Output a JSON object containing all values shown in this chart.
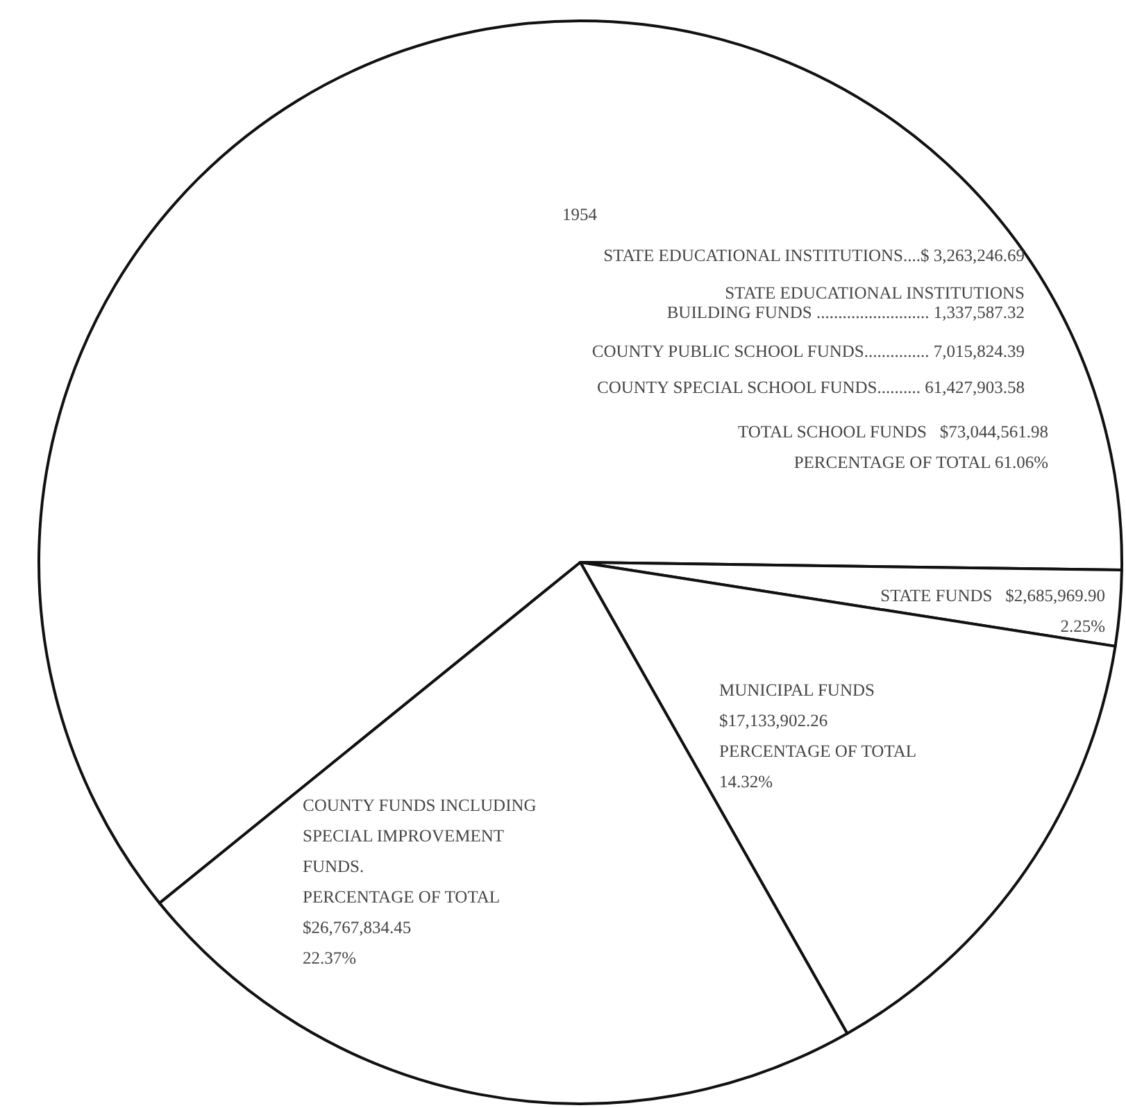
{
  "chart_data": {
    "type": "pie",
    "title": "1954",
    "categories": [
      "TOTAL SCHOOL FUNDS",
      "STATE FUNDS",
      "MUNICIPAL FUNDS",
      "COUNTY FUNDS INCLUDING\nSPECIAL IMPROVEMENT\nFUNDS."
    ],
    "values": [
      61.06,
      2.25,
      14.32,
      22.37
    ],
    "colors": [
      "#ffffff",
      "#ffffff",
      "#ffffff",
      "#ffffff"
    ],
    "value_labels": [
      "$73,044,561.98\nPERCENTAGE OF TOTAL 61.06%",
      "$2,685,969.90\n2.25%",
      "$17,133,902.26\nPERCENTAGE OF TOTAL\n14.32%",
      "PERCENTAGE OF TOTAL\n$26,767,834.45\n22.37%"
    ],
    "annotations": [
      "STATE EDUCATIONAL INSTITUTIONS....$ 3,263,246.69",
      "STATE EDUCATIONAL INSTITUTIONS\nBUILDING FUNDS .......................... 1,337,587.32",
      "COUNTY PUBLIC SCHOOL FUNDS............... 7,015,824.39",
      "COUNTY SPECIAL SCHOOL FUNDS.......... 61,427,903.58"
    ],
    "legend": false
  }
}
